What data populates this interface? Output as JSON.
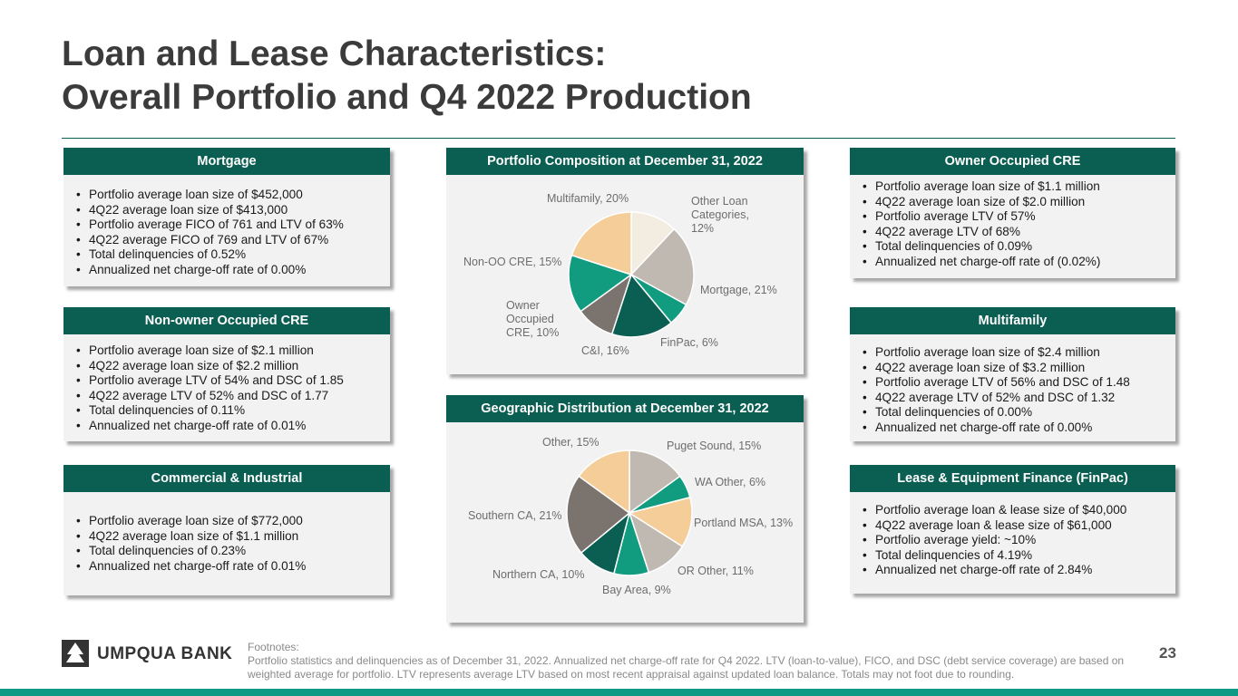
{
  "title": [
    "Loan and Lease Characteristics:",
    "Overall Portfolio and Q4 2022 Production"
  ],
  "panels": [
    {
      "header": "Mortgage",
      "items": [
        "Portfolio average loan size of $452,000",
        "4Q22 average loan size of $413,000",
        "Portfolio average FICO of 761 and LTV of 63%",
        "4Q22 average FICO of 769 and LTV of 67%",
        "Total delinquencies of 0.52%",
        "Annualized net charge-off rate of 0.00%"
      ]
    },
    {
      "header": "Non-owner Occupied CRE",
      "items": [
        "Portfolio average loan size of $2.1 million",
        "4Q22 average loan size of $2.2 million",
        "Portfolio average LTV of 54% and DSC of 1.85",
        "4Q22 average LTV of 52% and DSC of 1.77",
        "Total delinquencies of 0.11%",
        "Annualized net charge-off rate of 0.01%"
      ]
    },
    {
      "header": "Commercial & Industrial",
      "items": [
        "Portfolio average loan size of $772,000",
        "4Q22 average loan size of $1.1 million",
        "Total delinquencies of 0.23%",
        "Annualized net charge-off rate of 0.01%"
      ]
    },
    {
      "header": "Owner Occupied CRE",
      "items": [
        "Portfolio average loan size of $1.1 million",
        "4Q22 average loan size of $2.0 million",
        "Portfolio average LTV of 57%",
        "4Q22 average LTV of 68%",
        "Total delinquencies of 0.09%",
        "Annualized net charge-off rate of (0.02%)"
      ]
    },
    {
      "header": "Multifamily",
      "items": [
        "Portfolio average loan size of $2.4 million",
        "4Q22 average loan size of $3.2 million",
        "Portfolio average LTV of 56% and DSC of 1.48",
        "4Q22 average LTV of 52% and DSC of 1.32",
        "Total delinquencies of 0.00%",
        "Annualized net charge-off rate of 0.00%"
      ]
    },
    {
      "header": "Lease & Equipment Finance (FinPac)",
      "items": [
        "Portfolio average loan & lease size of $40,000",
        "4Q22 average loan & lease size of $61,000",
        "Portfolio average yield: ~10%",
        "Total delinquencies of 4.19%",
        "Annualized net charge-off rate of 2.84%"
      ]
    }
  ],
  "chart_data": [
    {
      "type": "pie",
      "title": "Portfolio Composition at December 31, 2022",
      "labels": [
        "Other Loan Categories, 12%",
        "Mortgage, 21%",
        "FinPac, 6%",
        "C&I, 16%",
        "Owner Occupied CRE, 10%",
        "Non-OO CRE, 15%",
        "Multifamily, 20%"
      ],
      "values": [
        12,
        21,
        6,
        16,
        10,
        15,
        20
      ],
      "colors": [
        "#f2ece1",
        "#c0b9b2",
        "#119c7f",
        "#0b5e52",
        "#7b746e",
        "#119c7f",
        "#f5cd98"
      ]
    },
    {
      "type": "pie",
      "title": "Geographic Distribution at December 31, 2022",
      "labels": [
        "Puget Sound, 15%",
        "WA Other, 6%",
        "Portland MSA, 13%",
        "OR Other, 11%",
        "Bay Area, 9%",
        "Northern CA, 10%",
        "Southern CA, 21%",
        "Other, 15%"
      ],
      "values": [
        15,
        6,
        13,
        11,
        9,
        10,
        21,
        15
      ],
      "colors": [
        "#c0b9b2",
        "#119c7f",
        "#f5cd98",
        "#c0b9b2",
        "#119c7f",
        "#0b5e52",
        "#7b746e",
        "#f5cd98"
      ]
    }
  ],
  "logo": "UMPQUA BANK",
  "footnote_title": "Footnotes:",
  "footnote": "Portfolio statistics and delinquencies as of December 31, 2022.  Annualized net charge-off rate for Q4 2022. LTV (loan-to-value), FICO, and DSC (debt service coverage) are based on weighted average for portfolio. LTV represents average LTV based on most recent appraisal against updated loan balance.  Totals may not foot due to rounding.",
  "page_number": "23"
}
